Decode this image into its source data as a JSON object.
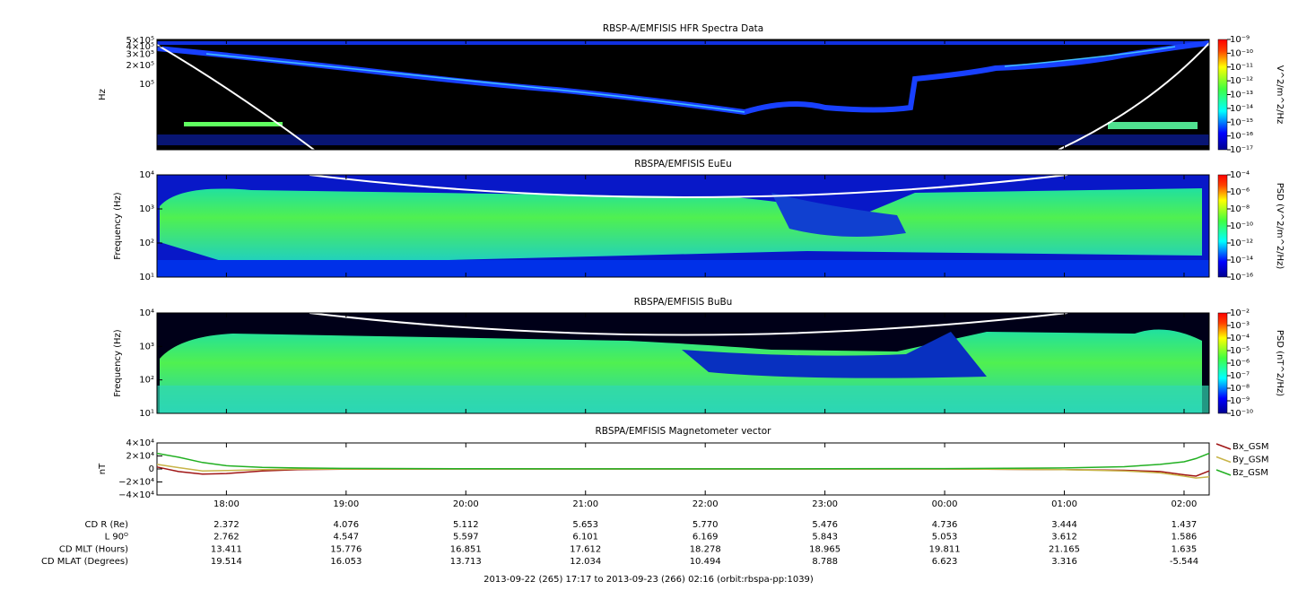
{
  "chart_data": [
    {
      "type": "spectrogram",
      "title": "RBSP-A/EMFISIS  HFR Spectra Data",
      "ylabel": "Hz",
      "log": true,
      "ylim": [
        9000,
        520000
      ],
      "yticks": [
        {
          "value": 500000,
          "label": "5×10⁵"
        },
        {
          "value": 400000,
          "label": "4×10⁵"
        },
        {
          "value": 300000,
          "label": "3×10⁵"
        },
        {
          "value": 200000,
          "label": "2×10⁵"
        },
        {
          "value": 100000,
          "label": "10⁵"
        }
      ],
      "zlabel": "V^2/m^2/Hz",
      "zlim": [
        1e-17,
        1e-09
      ],
      "zticks": [
        {
          "value": 1e-09,
          "label": "10⁻⁹"
        },
        {
          "value": 1e-10,
          "label": "10⁻¹⁰"
        },
        {
          "value": 1e-11,
          "label": "10⁻¹¹"
        },
        {
          "value": 1e-12,
          "label": "10⁻¹²"
        },
        {
          "value": 1e-13,
          "label": "10⁻¹³"
        },
        {
          "value": 1e-14,
          "label": "10⁻¹⁴"
        },
        {
          "value": 1e-15,
          "label": "10⁻¹⁵"
        },
        {
          "value": 1e-16,
          "label": "10⁻¹⁶"
        },
        {
          "value": 1e-17,
          "label": "10⁻¹⁷"
        }
      ]
    },
    {
      "type": "spectrogram",
      "title": "RBSPA/EMFISIS  EuEu",
      "ylabel": "Frequency (Hz)",
      "log": true,
      "ylim": [
        10,
        10000
      ],
      "yticks": [
        {
          "value": 10000,
          "label": "10⁴"
        },
        {
          "value": 1000,
          "label": "10³"
        },
        {
          "value": 100,
          "label": "10²"
        },
        {
          "value": 10,
          "label": "10¹"
        }
      ],
      "zlabel": "PSD (V^2/m^2/Hz)",
      "zlim": [
        1e-16,
        0.0001
      ],
      "zticks": [
        {
          "value": 0.0001,
          "label": "10⁻⁴"
        },
        {
          "value": 1e-06,
          "label": "10⁻⁶"
        },
        {
          "value": 1e-08,
          "label": "10⁻⁸"
        },
        {
          "value": 1e-10,
          "label": "10⁻¹⁰"
        },
        {
          "value": 1e-12,
          "label": "10⁻¹²"
        },
        {
          "value": 1e-14,
          "label": "10⁻¹⁴"
        },
        {
          "value": 1e-16,
          "label": "10⁻¹⁶"
        }
      ]
    },
    {
      "type": "spectrogram",
      "title": "RBSPA/EMFISIS  BuBu",
      "ylabel": "Frequency (Hz)",
      "log": true,
      "ylim": [
        10,
        10000
      ],
      "yticks": [
        {
          "value": 10000,
          "label": "10⁴"
        },
        {
          "value": 1000,
          "label": "10³"
        },
        {
          "value": 100,
          "label": "10²"
        },
        {
          "value": 10,
          "label": "10¹"
        }
      ],
      "zlabel": "PSD (nT^2/Hz)",
      "zlim": [
        1e-10,
        0.01
      ],
      "zticks": [
        {
          "value": 0.01,
          "label": "10⁻²"
        },
        {
          "value": 0.001,
          "label": "10⁻³"
        },
        {
          "value": 0.0001,
          "label": "10⁻⁴"
        },
        {
          "value": 1e-05,
          "label": "10⁻⁵"
        },
        {
          "value": 1e-06,
          "label": "10⁻⁶"
        },
        {
          "value": 1e-07,
          "label": "10⁻⁷"
        },
        {
          "value": 1e-08,
          "label": "10⁻⁸"
        },
        {
          "value": 1e-09,
          "label": "10⁻⁹"
        },
        {
          "value": 1e-10,
          "label": "10⁻¹⁰"
        }
      ]
    },
    {
      "type": "line",
      "title": "RBSPA/EMFISIS  Magnetometer vector",
      "ylabel": "nT",
      "log": false,
      "xlim": [
        17.42,
        26.21
      ],
      "xticks": [
        {
          "value": 18,
          "label": "18:00"
        },
        {
          "value": 19,
          "label": "19:00"
        },
        {
          "value": 20,
          "label": "20:00"
        },
        {
          "value": 21,
          "label": "21:00"
        },
        {
          "value": 22,
          "label": "22:00"
        },
        {
          "value": 23,
          "label": "23:00"
        },
        {
          "value": 24,
          "label": "00:00"
        },
        {
          "value": 25,
          "label": "01:00"
        },
        {
          "value": 26,
          "label": "02:00"
        }
      ],
      "ylim": [
        -40000,
        40000
      ],
      "yticks": [
        {
          "value": 40000,
          "label": "4×10⁴"
        },
        {
          "value": 20000,
          "label": "2×10⁴"
        },
        0,
        {
          "value": -20000,
          "label": "−2×10⁴"
        },
        {
          "value": -40000,
          "label": "−4×10⁴"
        }
      ],
      "x": [
        17.42,
        17.6,
        17.8,
        18.0,
        18.3,
        18.6,
        19,
        20,
        21,
        22,
        23,
        24,
        25,
        25.5,
        25.8,
        26.0,
        26.1,
        26.21
      ],
      "series": [
        {
          "name": "Bx_GSM",
          "color": "#a01515",
          "values": [
            3000,
            -4000,
            -8000,
            -7000,
            -3000,
            -1000,
            -300,
            0,
            0,
            0,
            0,
            0,
            -1000,
            -2000,
            -4000,
            -9000,
            -11000,
            -3000
          ]
        },
        {
          "name": "By_GSM",
          "color": "#c8b448",
          "values": [
            7000,
            2000,
            -3000,
            -2500,
            -1000,
            -400,
            -200,
            0,
            0,
            0,
            0,
            0,
            -1000,
            -3000,
            -6000,
            -11000,
            -14000,
            -12000
          ]
        },
        {
          "name": "Bz_GSM",
          "color": "#22b022",
          "values": [
            24000,
            18000,
            10000,
            5000,
            2500,
            1500,
            800,
            300,
            200,
            200,
            300,
            500,
            1500,
            3500,
            7000,
            11000,
            16000,
            24000
          ]
        }
      ],
      "legend": "right"
    }
  ],
  "ephemeris": {
    "labels": [
      "CD R (Re)",
      "L 90ᴼ",
      "CD MLT (Hours)",
      "CD MLAT (Degrees)"
    ],
    "rows": [
      [
        "2.372",
        "4.076",
        "5.112",
        "5.653",
        "5.770",
        "5.476",
        "4.736",
        "3.444",
        "1.437"
      ],
      [
        "2.762",
        "4.547",
        "5.597",
        "6.101",
        "6.169",
        "5.843",
        "5.053",
        "3.612",
        "1.586"
      ],
      [
        "13.411",
        "15.776",
        "16.851",
        "17.612",
        "18.278",
        "18.965",
        "19.811",
        "21.165",
        "1.635"
      ],
      [
        "19.514",
        "16.053",
        "13.713",
        "12.034",
        "10.494",
        "8.788",
        "6.623",
        "3.316",
        "-5.544"
      ]
    ]
  },
  "footer": "2013-09-22 (265) 17:17 to 2013-09-23 (266) 02:16 (orbit:rbspa-pp:1039)"
}
